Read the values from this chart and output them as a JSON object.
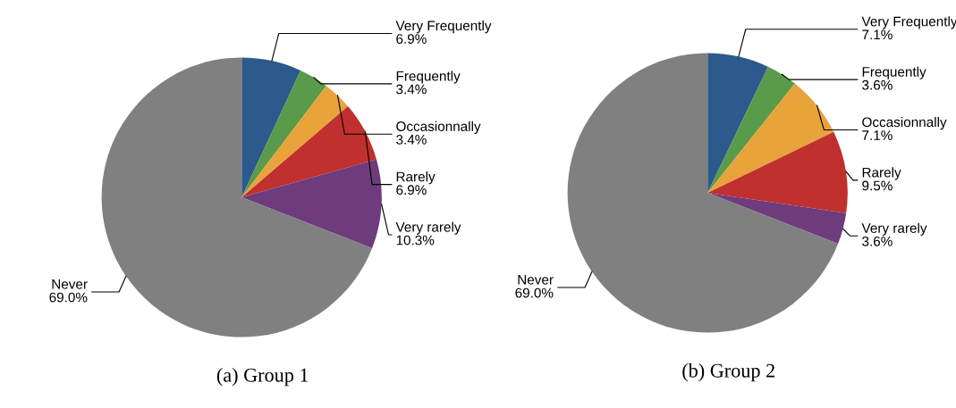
{
  "chart_data": [
    {
      "type": "pie",
      "title": "(a) Group 1",
      "categories": [
        "Very Frequently",
        "Frequently",
        "Occasionnally",
        "Rarely",
        "Very rarely",
        "Never"
      ],
      "values": [
        6.9,
        3.4,
        3.4,
        6.9,
        10.3,
        69.0
      ],
      "value_labels": [
        "6.9%",
        "3.4%",
        "3.4%",
        "6.9%",
        "10.3%",
        "69.0%"
      ],
      "colors": [
        "#2d5a8c",
        "#5a9a4b",
        "#e8a33a",
        "#c0302f",
        "#6e3c7c",
        "#7f807f"
      ]
    },
    {
      "type": "pie",
      "title": "(b) Group 2",
      "categories": [
        "Very Frequently",
        "Frequently",
        "Occasionnally",
        "Rarely",
        "Very rarely",
        "Never"
      ],
      "values": [
        7.1,
        3.6,
        7.1,
        9.5,
        3.6,
        69.0
      ],
      "value_labels": [
        "7.1%",
        "3.6%",
        "7.1%",
        "9.5%",
        "3.6%",
        "69.0%"
      ],
      "colors": [
        "#2d5a8c",
        "#5a9a4b",
        "#e8a33a",
        "#c0302f",
        "#6e3c7c",
        "#7f807f"
      ]
    }
  ]
}
